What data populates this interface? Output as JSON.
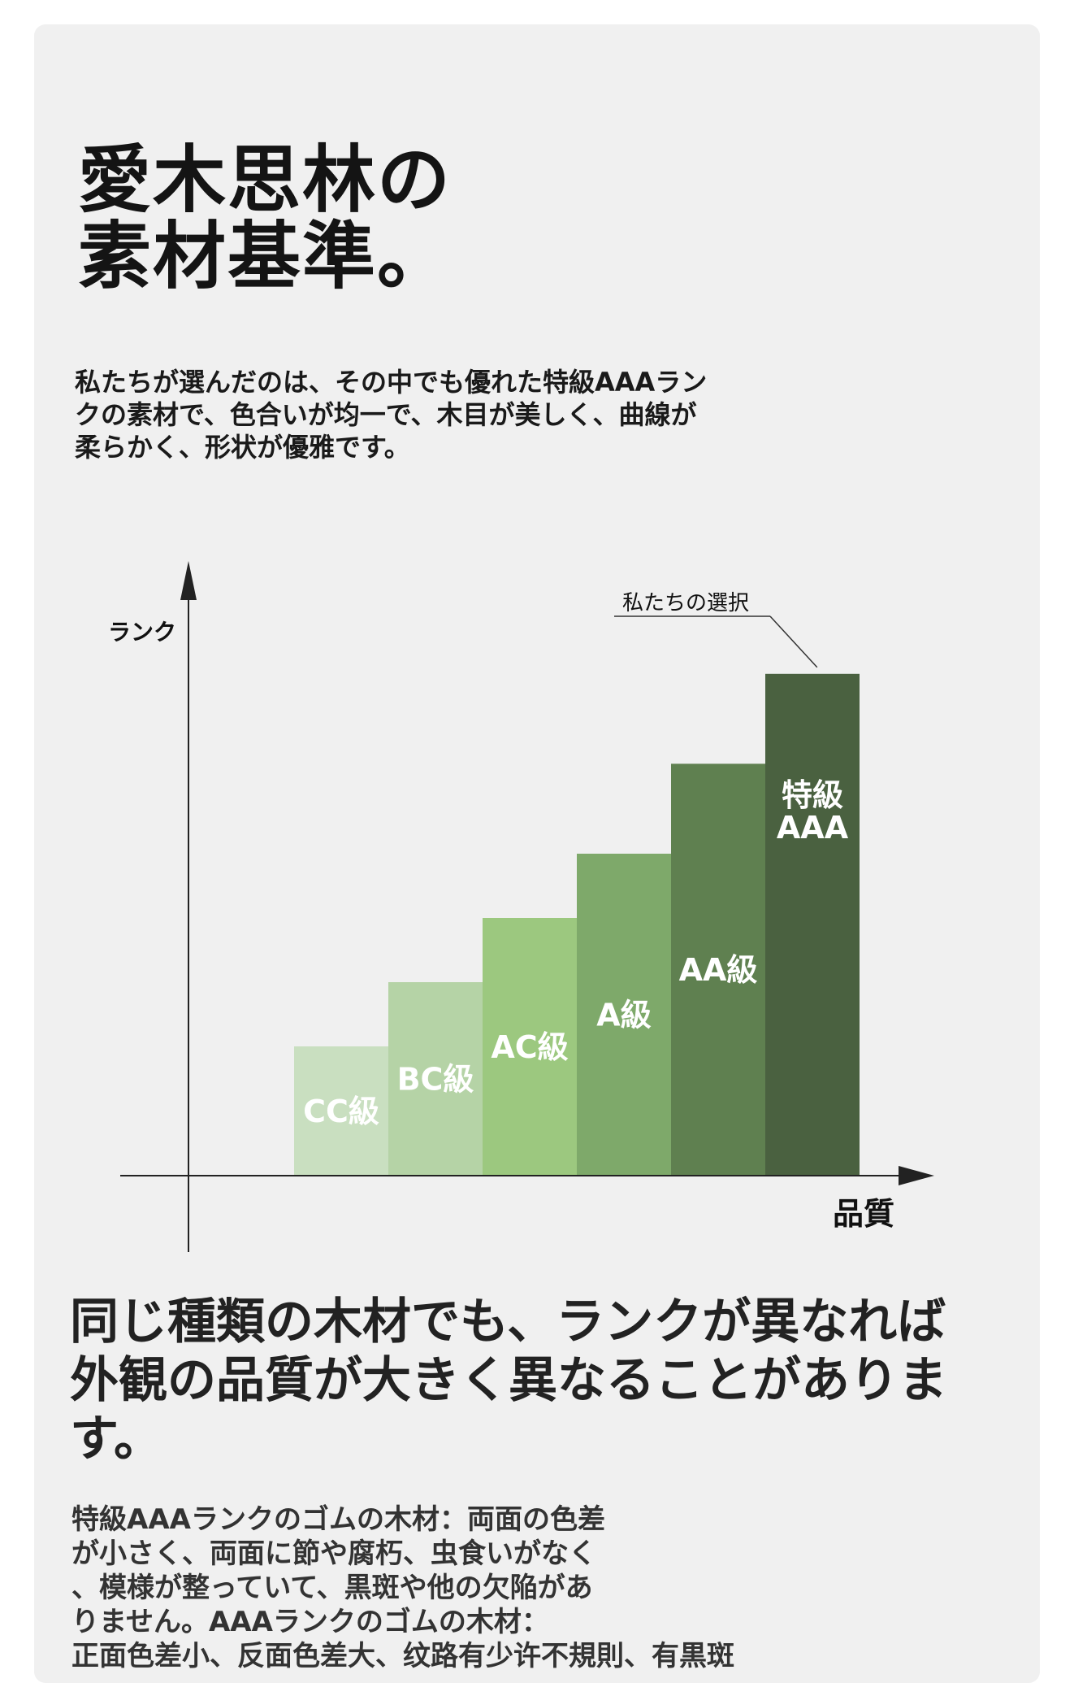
{
  "page": {
    "title_lines": [
      "愛木思林の",
      "素材基準。"
    ],
    "intro_lines": [
      "私たちが選んだのは、その中でも優れた特級AAAラン",
      "クの素材で、色合いが均一で、木目が美しく、曲線が",
      "柔らかく、形状が優雅です。"
    ],
    "headline_lines": [
      "同じ種類の木材でも、ランクが異なれば",
      "外観の品質が大きく異なることがありま",
      "す。"
    ],
    "detail_lines": [
      "特級AAAランクのゴムの木材：両面の色差",
      "が小さく、両面に節や腐朽、虫食いがなく",
      "、模様が整っていて、黒斑や他の欠陥があ",
      "りません。AAAランクのゴムの木材：",
      "正面色差小、反面色差大、纹路有少许不規則、有黒斑"
    ]
  },
  "chart_data": {
    "type": "bar",
    "xlabel": "品質",
    "ylabel": "ランク",
    "categories": [
      "CC級",
      "BC級",
      "AC級",
      "A級",
      "AA級",
      "特級AAA"
    ],
    "label_lines": [
      [
        "CC級"
      ],
      [
        "BC級"
      ],
      [
        "AC級"
      ],
      [
        "A級"
      ],
      [
        "AA級"
      ],
      [
        "特級",
        "AAA"
      ]
    ],
    "values": [
      1,
      1.5,
      2,
      2.5,
      3.2,
      3.9
    ],
    "ylim": [
      0,
      5
    ],
    "colors": [
      "#c9dfc0",
      "#b5d3a6",
      "#9cc87f",
      "#7ea96a",
      "#5f8050",
      "#4a6140"
    ],
    "annotation": "私たちの選択",
    "annotation_target": "特級AAA",
    "grid": false,
    "legend": "none"
  }
}
